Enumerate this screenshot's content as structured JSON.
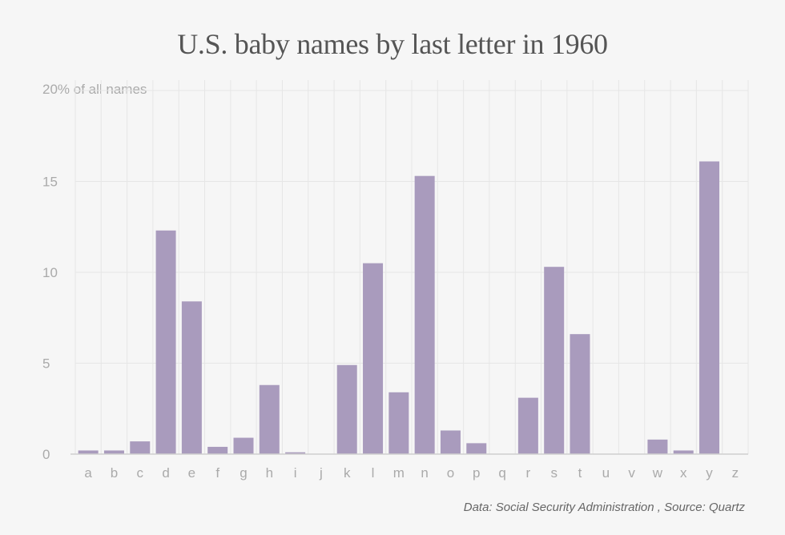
{
  "chart_data": {
    "type": "bar",
    "title": "U.S. baby names by last letter in 1960",
    "ylabel": "20% of all names",
    "xlabel": "",
    "categories": [
      "a",
      "b",
      "c",
      "d",
      "e",
      "f",
      "g",
      "h",
      "i",
      "j",
      "k",
      "l",
      "m",
      "n",
      "o",
      "p",
      "q",
      "r",
      "s",
      "t",
      "u",
      "v",
      "w",
      "x",
      "y",
      "z"
    ],
    "values": [
      0.2,
      0.2,
      0.7,
      12.3,
      8.4,
      0.4,
      0.9,
      3.8,
      0.1,
      0,
      4.9,
      10.5,
      3.4,
      15.3,
      1.3,
      0.6,
      0,
      3.1,
      10.3,
      6.6,
      0,
      0,
      0.8,
      0.2,
      16.1,
      0
    ],
    "ylim": [
      0,
      20
    ],
    "yticks": [
      0,
      5,
      10,
      15
    ],
    "grid": true,
    "legend": "none",
    "bar_color": "#a99bbd",
    "grid_color": "#e6e6e6",
    "axis_color": "#cfcfcf"
  },
  "footer": "Data: Social Security Administration , Source: Quartz"
}
